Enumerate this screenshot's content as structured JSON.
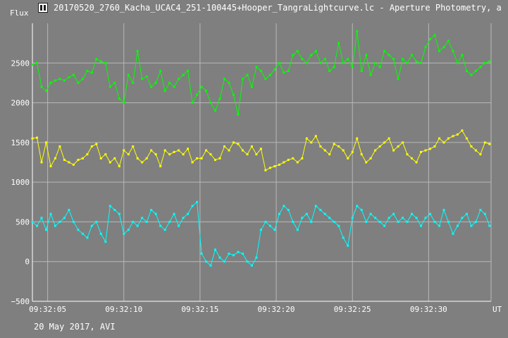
{
  "window": {
    "title": "20170520_2760_Kacha_UCAC4_251-100445+Hooper_TangraLightcurve.lc - Aperture Photometry, a"
  },
  "footer": {
    "date_label": "20 May 2017, AVI"
  },
  "chart_data": {
    "type": "line",
    "title": "",
    "ylabel": "Flux",
    "xlabel": "UT",
    "ylim": [
      -500,
      3000
    ],
    "xlim": [
      4.0,
      34.1
    ],
    "y_ticks": [
      -500,
      0,
      500,
      1000,
      1500,
      2000,
      2500
    ],
    "x_ticks": [
      {
        "value": 5,
        "label": "09:32:05"
      },
      {
        "value": 10,
        "label": "09:32:10"
      },
      {
        "value": 15,
        "label": "09:32:15"
      },
      {
        "value": 20,
        "label": "09:32:20"
      },
      {
        "value": 25,
        "label": "09:32:25"
      },
      {
        "value": 30,
        "label": "09:32:30"
      }
    ],
    "grid": true,
    "colors": {
      "background": "#7f7f7f",
      "grid": "#b8b8b8",
      "axis": "#ffffff"
    },
    "series": [
      {
        "color": "#00ff00",
        "x": [
          4.0,
          4.3,
          4.6,
          4.9,
          5.2,
          5.5,
          5.8,
          6.1,
          6.4,
          6.7,
          7.0,
          7.3,
          7.6,
          7.9,
          8.2,
          8.5,
          8.8,
          9.1,
          9.4,
          9.7,
          10.0,
          10.3,
          10.6,
          10.9,
          11.2,
          11.5,
          11.8,
          12.1,
          12.4,
          12.7,
          13.0,
          13.3,
          13.6,
          13.9,
          14.2,
          14.5,
          14.8,
          15.1,
          15.4,
          15.7,
          16.0,
          16.3,
          16.6,
          16.9,
          17.2,
          17.5,
          17.8,
          18.1,
          18.4,
          18.7,
          19.0,
          19.3,
          19.6,
          19.9,
          20.2,
          20.5,
          20.8,
          21.1,
          21.4,
          21.7,
          22.0,
          22.3,
          22.6,
          22.9,
          23.2,
          23.5,
          23.8,
          24.1,
          24.4,
          24.7,
          25.0,
          25.3,
          25.6,
          25.9,
          26.2,
          26.5,
          26.8,
          27.1,
          27.4,
          27.7,
          28.0,
          28.3,
          28.6,
          28.9,
          29.2,
          29.5,
          29.8,
          30.1,
          30.4,
          30.7,
          31.0,
          31.3,
          31.6,
          31.9,
          32.2,
          32.5,
          32.8,
          33.1,
          33.4,
          33.7,
          34.0
        ],
        "values": [
          2480,
          2500,
          2200,
          2150,
          2250,
          2280,
          2300,
          2280,
          2320,
          2350,
          2250,
          2300,
          2400,
          2380,
          2550,
          2520,
          2500,
          2200,
          2250,
          2050,
          2000,
          2350,
          2250,
          2650,
          2300,
          2330,
          2200,
          2250,
          2400,
          2150,
          2250,
          2200,
          2300,
          2350,
          2400,
          2000,
          2100,
          2200,
          2150,
          2000,
          1900,
          2050,
          2300,
          2250,
          2100,
          1850,
          2300,
          2350,
          2200,
          2450,
          2400,
          2300,
          2350,
          2420,
          2500,
          2380,
          2400,
          2600,
          2650,
          2550,
          2500,
          2600,
          2650,
          2500,
          2550,
          2400,
          2450,
          2750,
          2500,
          2550,
          2450,
          2900,
          2400,
          2600,
          2350,
          2500,
          2450,
          2650,
          2600,
          2550,
          2300,
          2550,
          2500,
          2600,
          2520,
          2500,
          2700,
          2800,
          2850,
          2650,
          2700,
          2780,
          2650,
          2500,
          2600,
          2400,
          2350,
          2400,
          2450,
          2500,
          2520
        ]
      },
      {
        "color": "#ffff00",
        "x": [
          4.0,
          4.3,
          4.6,
          4.9,
          5.2,
          5.5,
          5.8,
          6.1,
          6.4,
          6.7,
          7.0,
          7.3,
          7.6,
          7.9,
          8.2,
          8.5,
          8.8,
          9.1,
          9.4,
          9.7,
          10.0,
          10.3,
          10.6,
          10.9,
          11.2,
          11.5,
          11.8,
          12.1,
          12.4,
          12.7,
          13.0,
          13.3,
          13.6,
          13.9,
          14.2,
          14.5,
          14.8,
          15.1,
          15.4,
          15.7,
          16.0,
          16.3,
          16.6,
          16.9,
          17.2,
          17.5,
          17.8,
          18.1,
          18.4,
          18.7,
          19.0,
          19.3,
          19.6,
          19.9,
          20.2,
          20.5,
          20.8,
          21.1,
          21.4,
          21.7,
          22.0,
          22.3,
          22.6,
          22.9,
          23.2,
          23.5,
          23.8,
          24.1,
          24.4,
          24.7,
          25.0,
          25.3,
          25.6,
          25.9,
          26.2,
          26.5,
          26.8,
          27.1,
          27.4,
          27.7,
          28.0,
          28.3,
          28.6,
          28.9,
          29.2,
          29.5,
          29.8,
          30.1,
          30.4,
          30.7,
          31.0,
          31.3,
          31.6,
          31.9,
          32.2,
          32.5,
          32.8,
          33.1,
          33.4,
          33.7,
          34.0
        ],
        "values": [
          1550,
          1560,
          1250,
          1500,
          1200,
          1300,
          1450,
          1280,
          1250,
          1220,
          1280,
          1300,
          1350,
          1450,
          1480,
          1300,
          1350,
          1250,
          1300,
          1200,
          1400,
          1350,
          1450,
          1300,
          1250,
          1300,
          1400,
          1350,
          1200,
          1400,
          1350,
          1380,
          1400,
          1350,
          1420,
          1250,
          1300,
          1300,
          1400,
          1350,
          1280,
          1300,
          1450,
          1400,
          1500,
          1480,
          1400,
          1350,
          1450,
          1350,
          1420,
          1150,
          1180,
          1200,
          1220,
          1250,
          1280,
          1300,
          1250,
          1300,
          1550,
          1500,
          1580,
          1450,
          1400,
          1350,
          1480,
          1450,
          1400,
          1300,
          1380,
          1550,
          1350,
          1250,
          1300,
          1400,
          1450,
          1500,
          1550,
          1400,
          1450,
          1500,
          1350,
          1300,
          1250,
          1380,
          1400,
          1420,
          1450,
          1550,
          1500,
          1550,
          1580,
          1600,
          1650,
          1550,
          1450,
          1400,
          1350,
          1500,
          1480
        ]
      },
      {
        "color": "#00ffff",
        "x": [
          4.0,
          4.3,
          4.6,
          4.9,
          5.2,
          5.5,
          5.8,
          6.1,
          6.4,
          6.7,
          7.0,
          7.3,
          7.6,
          7.9,
          8.2,
          8.5,
          8.8,
          9.1,
          9.4,
          9.7,
          10.0,
          10.3,
          10.6,
          10.9,
          11.2,
          11.5,
          11.8,
          12.1,
          12.4,
          12.7,
          13.0,
          13.3,
          13.6,
          13.9,
          14.2,
          14.5,
          14.8,
          15.1,
          15.4,
          15.7,
          16.0,
          16.3,
          16.6,
          16.9,
          17.2,
          17.5,
          17.8,
          18.1,
          18.4,
          18.7,
          19.0,
          19.3,
          19.6,
          19.9,
          20.2,
          20.5,
          20.8,
          21.1,
          21.4,
          21.7,
          22.0,
          22.3,
          22.6,
          22.9,
          23.2,
          23.5,
          23.8,
          24.1,
          24.4,
          24.7,
          25.0,
          25.3,
          25.6,
          25.9,
          26.2,
          26.5,
          26.8,
          27.1,
          27.4,
          27.7,
          28.0,
          28.3,
          28.6,
          28.9,
          29.2,
          29.5,
          29.8,
          30.1,
          30.4,
          30.7,
          31.0,
          31.3,
          31.6,
          31.9,
          32.2,
          32.5,
          32.8,
          33.1,
          33.4,
          33.7,
          34.0
        ],
        "values": [
          500,
          450,
          550,
          400,
          600,
          450,
          500,
          550,
          650,
          500,
          400,
          350,
          300,
          450,
          500,
          350,
          250,
          700,
          650,
          600,
          350,
          400,
          500,
          450,
          550,
          500,
          650,
          600,
          450,
          400,
          500,
          600,
          450,
          550,
          600,
          700,
          750,
          100,
          0,
          -50,
          150,
          50,
          0,
          100,
          80,
          120,
          100,
          0,
          -50,
          50,
          400,
          500,
          450,
          400,
          600,
          700,
          650,
          500,
          400,
          550,
          600,
          500,
          700,
          650,
          600,
          550,
          500,
          450,
          300,
          200,
          550,
          700,
          650,
          500,
          600,
          550,
          500,
          450,
          550,
          600,
          500,
          550,
          500,
          600,
          550,
          450,
          550,
          600,
          500,
          450,
          650,
          500,
          350,
          450,
          550,
          600,
          450,
          500,
          650,
          600,
          450
        ]
      }
    ]
  }
}
